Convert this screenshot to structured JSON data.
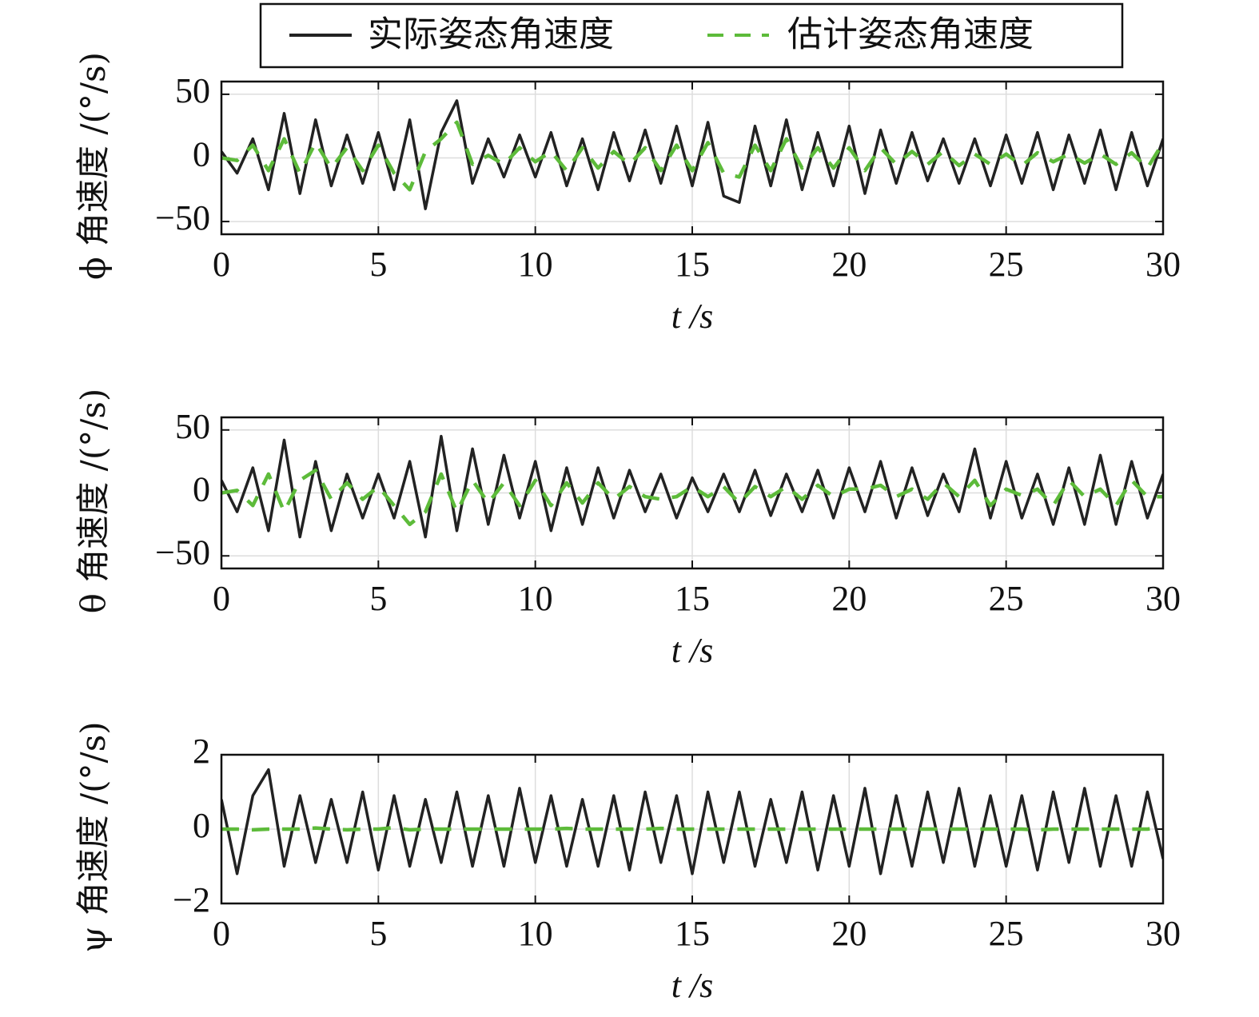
{
  "chart_data": [
    {
      "type": "line",
      "xlabel": "t /s",
      "ylabel": "ϕ 角速度 /(°/s)",
      "grid": true,
      "xlim": [
        0,
        30
      ],
      "ylim": [
        -60,
        60
      ],
      "xticks": [
        0,
        5,
        10,
        15,
        20,
        25,
        30
      ],
      "yticks": [
        {
          "value": -50,
          "label": "−50"
        },
        0,
        50
      ],
      "x": [
        0,
        0.5,
        1,
        1.5,
        2,
        2.5,
        3,
        3.5,
        4,
        4.5,
        5,
        5.5,
        6,
        6.5,
        7,
        7.5,
        8,
        8.5,
        9,
        9.5,
        10,
        10.5,
        11,
        11.5,
        12,
        12.5,
        13,
        13.5,
        14,
        14.5,
        15,
        15.5,
        16,
        16.5,
        17,
        17.5,
        18,
        18.5,
        19,
        19.5,
        20,
        20.5,
        21,
        21.5,
        22,
        22.5,
        23,
        23.5,
        24,
        24.5,
        25,
        25.5,
        26,
        26.5,
        27,
        27.5,
        28,
        28.5,
        29,
        29.5,
        30
      ],
      "series": [
        {
          "name": "实际姿态角速度",
          "color": "#222222",
          "values": [
            5,
            -12,
            15,
            -25,
            35,
            -28,
            30,
            -22,
            18,
            -20,
            20,
            -25,
            30,
            -40,
            20,
            45,
            -20,
            15,
            -15,
            18,
            -15,
            20,
            -22,
            15,
            -25,
            20,
            -18,
            22,
            -20,
            25,
            -22,
            28,
            -30,
            -35,
            25,
            -22,
            30,
            -25,
            20,
            -22,
            25,
            -28,
            22,
            -20,
            20,
            -18,
            15,
            -20,
            15,
            -22,
            18,
            -20,
            20,
            -25,
            18,
            -20,
            22,
            -25,
            20,
            -22,
            15
          ]
        },
        {
          "name": "估计姿态角速度",
          "color": "#5dbb3a",
          "dashed": true,
          "values": [
            0,
            -2,
            10,
            -10,
            15,
            -12,
            12,
            -8,
            8,
            -10,
            10,
            -12,
            -25,
            5,
            15,
            28,
            -5,
            2,
            -5,
            8,
            -3,
            5,
            -10,
            8,
            -8,
            5,
            -5,
            8,
            -10,
            10,
            -10,
            12,
            -12,
            -15,
            10,
            -10,
            15,
            -8,
            8,
            -8,
            8,
            -10,
            8,
            -5,
            5,
            -5,
            5,
            -6,
            3,
            -5,
            3,
            -6,
            4,
            -3,
            3,
            -4,
            3,
            -5,
            4,
            -8,
            12
          ]
        }
      ]
    },
    {
      "type": "line",
      "xlabel": "t /s",
      "ylabel": "θ 角速度 /(°/s)",
      "grid": true,
      "xlim": [
        0,
        30
      ],
      "ylim": [
        -60,
        60
      ],
      "xticks": [
        0,
        5,
        10,
        15,
        20,
        25,
        30
      ],
      "yticks": [
        {
          "value": -50,
          "label": "−50"
        },
        0,
        50
      ],
      "x": [
        0,
        0.5,
        1,
        1.5,
        2,
        2.5,
        3,
        3.5,
        4,
        4.5,
        5,
        5.5,
        6,
        6.5,
        7,
        7.5,
        8,
        8.5,
        9,
        9.5,
        10,
        10.5,
        11,
        11.5,
        12,
        12.5,
        13,
        13.5,
        14,
        14.5,
        15,
        15.5,
        16,
        16.5,
        17,
        17.5,
        18,
        18.5,
        19,
        19.5,
        20,
        20.5,
        21,
        21.5,
        22,
        22.5,
        23,
        23.5,
        24,
        24.5,
        25,
        25.5,
        26,
        26.5,
        27,
        27.5,
        28,
        28.5,
        29,
        29.5,
        30
      ],
      "series": [
        {
          "color": "#222222",
          "values": [
            10,
            -15,
            20,
            -30,
            42,
            -35,
            25,
            -30,
            15,
            -20,
            15,
            -20,
            25,
            -35,
            45,
            -30,
            35,
            -25,
            30,
            -20,
            25,
            -30,
            20,
            -25,
            20,
            -20,
            18,
            -15,
            15,
            -20,
            12,
            -15,
            15,
            -15,
            18,
            -18,
            15,
            -15,
            18,
            -20,
            20,
            -15,
            25,
            -20,
            20,
            -18,
            15,
            -15,
            35,
            -20,
            25,
            -20,
            15,
            -25,
            20,
            -25,
            30,
            -25,
            25,
            -20,
            15
          ]
        },
        {
          "color": "#5dbb3a",
          "dashed": true,
          "values": [
            0,
            2,
            -10,
            15,
            -15,
            10,
            18,
            -5,
            8,
            -5,
            5,
            -10,
            -25,
            -15,
            15,
            -15,
            10,
            -8,
            8,
            -10,
            10,
            -10,
            8,
            -8,
            8,
            -5,
            5,
            -3,
            -5,
            -3,
            5,
            -3,
            5,
            -8,
            5,
            -3,
            5,
            -5,
            6,
            -3,
            3,
            3,
            6,
            -3,
            3,
            -5,
            8,
            -3,
            10,
            -10,
            3,
            -2,
            3,
            -10,
            10,
            -3,
            3,
            -10,
            10,
            -3,
            -3
          ]
        }
      ]
    },
    {
      "type": "line",
      "xlabel": "t /s",
      "ylabel": "ψ 角速度 /(°/s)",
      "grid": true,
      "xlim": [
        0,
        30
      ],
      "ylim": [
        -2,
        2
      ],
      "xticks": [
        0,
        5,
        10,
        15,
        20,
        25,
        30
      ],
      "yticks": [
        {
          "value": -2,
          "label": "−2"
        },
        0,
        2
      ],
      "x": [
        0,
        0.5,
        1,
        1.5,
        2,
        2.5,
        3,
        3.5,
        4,
        4.5,
        5,
        5.5,
        6,
        6.5,
        7,
        7.5,
        8,
        8.5,
        9,
        9.5,
        10,
        10.5,
        11,
        11.5,
        12,
        12.5,
        13,
        13.5,
        14,
        14.5,
        15,
        15.5,
        16,
        16.5,
        17,
        17.5,
        18,
        18.5,
        19,
        19.5,
        20,
        20.5,
        21,
        21.5,
        22,
        22.5,
        23,
        23.5,
        24,
        24.5,
        25,
        25.5,
        26,
        26.5,
        27,
        27.5,
        28,
        28.5,
        29,
        29.5,
        30
      ],
      "series": [
        {
          "color": "#222222",
          "values": [
            0.8,
            -1.2,
            0.9,
            1.6,
            -1,
            0.9,
            -0.9,
            0.8,
            -0.9,
            1,
            -1.1,
            0.9,
            -1,
            0.8,
            -0.9,
            1,
            -1,
            0.9,
            -1,
            1.1,
            -0.9,
            0.9,
            -1,
            0.8,
            -1,
            0.9,
            -1.1,
            1,
            -0.9,
            0.9,
            -1.2,
            1,
            -0.9,
            1,
            -1,
            0.8,
            -0.9,
            1,
            -1.1,
            0.9,
            -1,
            1.1,
            -1.2,
            0.9,
            -1,
            1,
            -0.9,
            1.1,
            -1,
            0.9,
            -1,
            0.9,
            -1.1,
            1,
            -0.9,
            1.1,
            -1,
            0.9,
            -1,
            1,
            -0.8
          ]
        },
        {
          "color": "#5dbb3a",
          "dashed": true,
          "values": [
            0,
            0,
            -0.02,
            0,
            0,
            0,
            0.03,
            0,
            -0.02,
            0,
            0,
            0.04,
            -0.02,
            0,
            0,
            0,
            0,
            0,
            0,
            0,
            0,
            0,
            0.02,
            0,
            0,
            0,
            0,
            0,
            0.02,
            0,
            0,
            0,
            0,
            0,
            0,
            0,
            0,
            0,
            0,
            0,
            0,
            0,
            0,
            0,
            0,
            0,
            0,
            0,
            0,
            0,
            0,
            0,
            -0.02,
            0,
            0,
            0,
            0,
            0,
            0,
            0,
            0.05
          ]
        }
      ]
    }
  ]
}
